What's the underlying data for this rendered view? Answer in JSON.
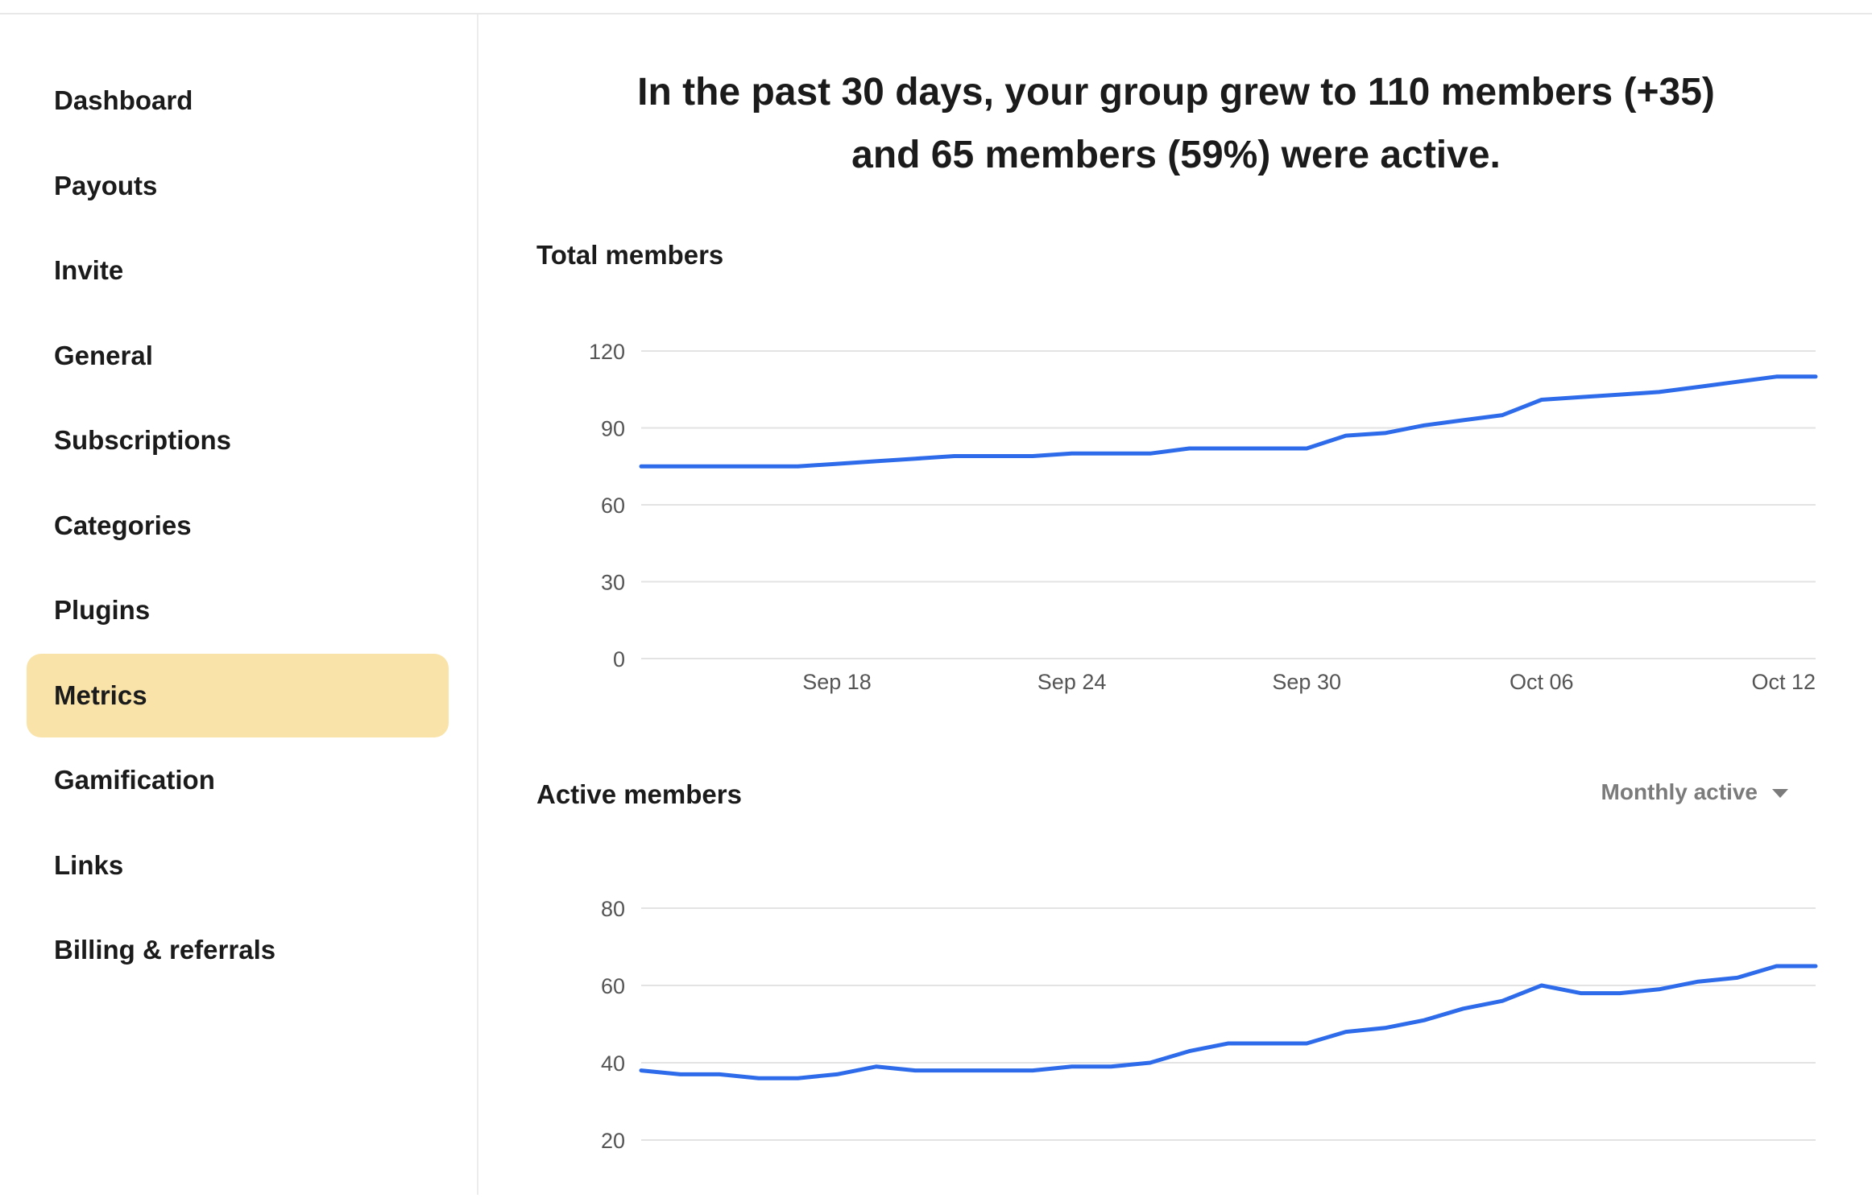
{
  "sidebar": {
    "items": [
      {
        "label": "Dashboard"
      },
      {
        "label": "Payouts"
      },
      {
        "label": "Invite"
      },
      {
        "label": "General"
      },
      {
        "label": "Subscriptions"
      },
      {
        "label": "Categories"
      },
      {
        "label": "Plugins"
      },
      {
        "label": "Metrics",
        "active": true
      },
      {
        "label": "Gamification"
      },
      {
        "label": "Links"
      },
      {
        "label": "Billing & referrals"
      }
    ]
  },
  "headline": {
    "line1": "In the past 30 days, your group grew to 110 members (+35)",
    "line2": "and 65 members (59%) were active."
  },
  "total_chart": {
    "title": "Total members"
  },
  "active_chart": {
    "title": "Active members",
    "dropdown_label": "Monthly active"
  },
  "colors": {
    "line": "#2d6bea",
    "active_nav_bg": "#f9e3a8",
    "grid": "#e3e3e3"
  },
  "chart_data": [
    {
      "type": "line",
      "title": "Total members",
      "x": [
        "Sep 13",
        "Sep 14",
        "Sep 15",
        "Sep 16",
        "Sep 17",
        "Sep 18",
        "Sep 19",
        "Sep 20",
        "Sep 21",
        "Sep 22",
        "Sep 23",
        "Sep 24",
        "Sep 25",
        "Sep 26",
        "Sep 27",
        "Sep 28",
        "Sep 29",
        "Sep 30",
        "Oct 01",
        "Oct 02",
        "Oct 03",
        "Oct 04",
        "Oct 05",
        "Oct 06",
        "Oct 07",
        "Oct 08",
        "Oct 09",
        "Oct 10",
        "Oct 11",
        "Oct 12",
        "Oct 13"
      ],
      "series": [
        {
          "values": [
            75,
            75,
            75,
            75,
            75,
            76,
            77,
            78,
            79,
            79,
            79,
            80,
            80,
            80,
            82,
            82,
            82,
            82,
            87,
            88,
            91,
            93,
            95,
            101,
            102,
            103,
            104,
            106,
            108,
            110,
            110
          ]
        }
      ],
      "ylim": [
        0,
        120
      ],
      "yticks": [
        0,
        30,
        60,
        90,
        120
      ],
      "xticks": [
        "Sep 18",
        "Sep 24",
        "Sep 30",
        "Oct 06",
        "Oct 12"
      ],
      "grid": true
    },
    {
      "type": "line",
      "title": "Active members",
      "x": [
        "Sep 13",
        "Sep 14",
        "Sep 15",
        "Sep 16",
        "Sep 17",
        "Sep 18",
        "Sep 19",
        "Sep 20",
        "Sep 21",
        "Sep 22",
        "Sep 23",
        "Sep 24",
        "Sep 25",
        "Sep 26",
        "Sep 27",
        "Sep 28",
        "Sep 29",
        "Sep 30",
        "Oct 01",
        "Oct 02",
        "Oct 03",
        "Oct 04",
        "Oct 05",
        "Oct 06",
        "Oct 07",
        "Oct 08",
        "Oct 09",
        "Oct 10",
        "Oct 11",
        "Oct 12",
        "Oct 13"
      ],
      "series": [
        {
          "values": [
            38,
            37,
            37,
            36,
            36,
            37,
            39,
            38,
            38,
            38,
            38,
            39,
            39,
            40,
            43,
            45,
            45,
            45,
            48,
            49,
            51,
            54,
            56,
            60,
            58,
            58,
            59,
            61,
            62,
            65,
            65
          ]
        }
      ],
      "ylim": [
        20,
        80
      ],
      "yticks": [
        20,
        40,
        60,
        80
      ],
      "grid": true
    }
  ]
}
